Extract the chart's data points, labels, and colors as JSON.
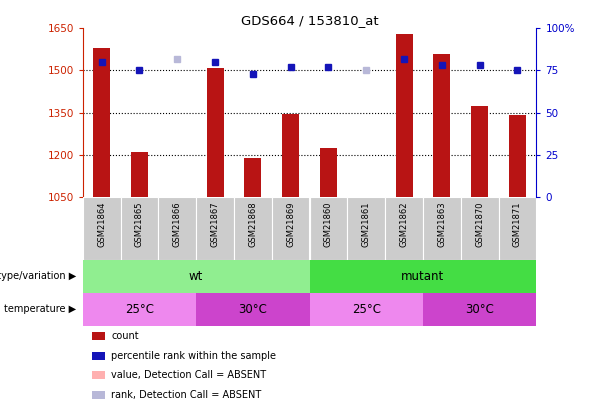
{
  "title": "GDS664 / 153810_at",
  "samples": [
    "GSM21864",
    "GSM21865",
    "GSM21866",
    "GSM21867",
    "GSM21868",
    "GSM21869",
    "GSM21860",
    "GSM21861",
    "GSM21862",
    "GSM21863",
    "GSM21870",
    "GSM21871"
  ],
  "counts": [
    1580,
    1210,
    1050,
    1510,
    1190,
    1345,
    1225,
    1050,
    1630,
    1560,
    1375,
    1340
  ],
  "percentile_ranks": [
    80,
    75,
    82,
    80,
    73,
    77,
    77,
    75,
    82,
    78,
    78,
    75
  ],
  "absent_mask": [
    false,
    false,
    true,
    false,
    false,
    false,
    false,
    true,
    false,
    false,
    false,
    false
  ],
  "ylim_left": [
    1050,
    1650
  ],
  "ylim_right": [
    0,
    100
  ],
  "yticks_left": [
    1050,
    1200,
    1350,
    1500,
    1650
  ],
  "yticks_right": [
    0,
    25,
    50,
    75,
    100
  ],
  "bar_color_present": "#b81414",
  "bar_color_absent": "#ffb0b0",
  "dot_color_present": "#1414b8",
  "dot_color_absent": "#b8b8d8",
  "bar_width": 0.45,
  "genotype_groups": [
    {
      "label": "wt",
      "start": 0,
      "end": 6,
      "color": "#90ee90"
    },
    {
      "label": "mutant",
      "start": 6,
      "end": 12,
      "color": "#44dd44"
    }
  ],
  "temperature_groups": [
    {
      "label": "25°C",
      "start": 0,
      "end": 3,
      "color": "#ee88ee"
    },
    {
      "label": "30°C",
      "start": 3,
      "end": 6,
      "color": "#cc44cc"
    },
    {
      "label": "25°C",
      "start": 6,
      "end": 9,
      "color": "#ee88ee"
    },
    {
      "label": "30°C",
      "start": 9,
      "end": 12,
      "color": "#cc44cc"
    }
  ],
  "legend_items": [
    {
      "label": "count",
      "color": "#b81414"
    },
    {
      "label": "percentile rank within the sample",
      "color": "#1414b8"
    },
    {
      "label": "value, Detection Call = ABSENT",
      "color": "#ffb0b0"
    },
    {
      "label": "rank, Detection Call = ABSENT",
      "color": "#b8b8d8"
    }
  ],
  "left_axis_color": "#cc2200",
  "right_axis_color": "#0000cc",
  "sample_box_color": "#cccccc",
  "fig_width": 6.13,
  "fig_height": 4.05,
  "dpi": 100
}
